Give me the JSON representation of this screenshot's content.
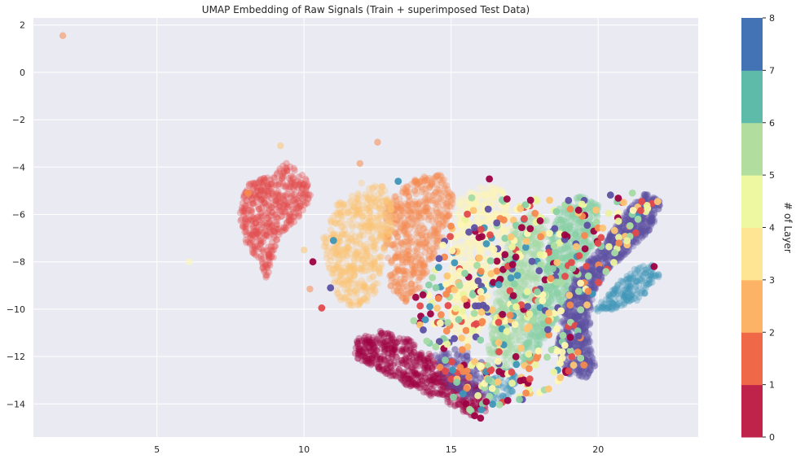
{
  "chart_data": {
    "type": "scatter",
    "title": "UMAP Embedding of Raw Signals (Train + superimposed Test Data)",
    "xlabel": "",
    "ylabel": "",
    "xlim": [
      0.8,
      23.4
    ],
    "ylim": [
      -15.4,
      2.3
    ],
    "xticks": [
      5,
      10,
      15,
      20
    ],
    "yticks": [
      2,
      0,
      -2,
      -4,
      -6,
      -8,
      -10,
      -12,
      -14
    ],
    "grid": true,
    "colorbar": {
      "label": "# of Layer",
      "ticks": [
        0,
        1,
        2,
        3,
        4,
        5,
        6,
        7,
        8
      ],
      "range": [
        0,
        8
      ],
      "colors": [
        "#c0234a",
        "#ef6948",
        "#fdb366",
        "#fee593",
        "#eef8a0",
        "#b1de9f",
        "#5ebaa9",
        "#4373b4"
      ]
    },
    "layer_colors": [
      "#9e0142",
      "#e34a4b",
      "#f6894e",
      "#fdc573",
      "#fef7b0",
      "#ebf39d",
      "#a6dba4",
      "#8ad1a5",
      "#3e96b7",
      "#5d50a3"
    ],
    "train_clusters": [
      {
        "layer": 0,
        "polygon": [
          [
            11.7,
            -11.3
          ],
          [
            12.6,
            -10.9
          ],
          [
            13.6,
            -11.3
          ],
          [
            14.6,
            -12.2
          ],
          [
            15.4,
            -12.9
          ],
          [
            16.1,
            -13.4
          ],
          [
            16.2,
            -14.3
          ],
          [
            15.6,
            -14.5
          ],
          [
            14.7,
            -13.9
          ],
          [
            13.6,
            -13.3
          ],
          [
            12.6,
            -12.6
          ],
          [
            11.7,
            -12.0
          ]
        ]
      },
      {
        "layer": 1,
        "polygon": [
          [
            8.0,
            -4.8
          ],
          [
            9.0,
            -4.2
          ],
          [
            9.4,
            -3.8
          ],
          [
            10.1,
            -4.5
          ],
          [
            10.3,
            -5.2
          ],
          [
            9.8,
            -6.2
          ],
          [
            9.1,
            -7.0
          ],
          [
            8.9,
            -8.2
          ],
          [
            8.7,
            -8.8
          ],
          [
            8.5,
            -8.0
          ],
          [
            8.0,
            -7.2
          ],
          [
            7.8,
            -6.0
          ]
        ]
      },
      {
        "layer": 2,
        "polygon": [
          [
            12.8,
            -5.5
          ],
          [
            13.6,
            -4.6
          ],
          [
            14.6,
            -4.2
          ],
          [
            15.1,
            -5.2
          ],
          [
            14.9,
            -6.6
          ],
          [
            14.4,
            -7.8
          ],
          [
            14.0,
            -9.0
          ],
          [
            13.4,
            -9.8
          ],
          [
            12.9,
            -9.0
          ],
          [
            12.7,
            -7.2
          ]
        ]
      },
      {
        "layer": 3,
        "polygon": [
          [
            11.1,
            -5.6
          ],
          [
            12.0,
            -4.6
          ],
          [
            12.9,
            -4.9
          ],
          [
            13.1,
            -6.4
          ],
          [
            12.7,
            -8.0
          ],
          [
            12.4,
            -9.4
          ],
          [
            11.8,
            -10.0
          ],
          [
            11.2,
            -9.6
          ],
          [
            10.8,
            -8.2
          ],
          [
            10.6,
            -6.9
          ]
        ]
      },
      {
        "layer": 4,
        "polygon": [
          [
            15.3,
            -5.3
          ],
          [
            16.1,
            -4.7
          ],
          [
            16.9,
            -5.0
          ],
          [
            17.1,
            -6.6
          ],
          [
            16.6,
            -8.4
          ],
          [
            16.2,
            -10.5
          ],
          [
            15.6,
            -11.5
          ],
          [
            15.0,
            -10.9
          ],
          [
            14.9,
            -9.0
          ],
          [
            15.0,
            -7.0
          ]
        ]
      },
      {
        "layer": 6,
        "polygon": [
          [
            17.1,
            -6.4
          ],
          [
            17.8,
            -5.8
          ],
          [
            18.3,
            -6.3
          ],
          [
            18.1,
            -8.2
          ],
          [
            17.6,
            -10.5
          ],
          [
            17.2,
            -12.3
          ],
          [
            16.7,
            -12.9
          ],
          [
            16.2,
            -12.2
          ],
          [
            16.4,
            -10.0
          ],
          [
            16.8,
            -8.0
          ]
        ]
      },
      {
        "layer": 7,
        "polygon": [
          [
            18.5,
            -5.9
          ],
          [
            19.4,
            -5.2
          ],
          [
            20.0,
            -5.6
          ],
          [
            19.9,
            -7.2
          ],
          [
            19.3,
            -8.5
          ],
          [
            18.6,
            -10.4
          ],
          [
            17.9,
            -12.0
          ],
          [
            17.4,
            -12.6
          ],
          [
            17.5,
            -11.0
          ],
          [
            18.1,
            -9.0
          ],
          [
            18.3,
            -7.5
          ]
        ]
      },
      {
        "layer": 8,
        "polygon": [
          [
            19.9,
            -10.0
          ],
          [
            20.6,
            -9.0
          ],
          [
            21.3,
            -8.2
          ],
          [
            21.9,
            -8.1
          ],
          [
            22.1,
            -8.6
          ],
          [
            21.4,
            -9.6
          ],
          [
            20.6,
            -10.0
          ],
          [
            20.0,
            -10.2
          ]
        ]
      },
      {
        "layer": 9,
        "polygon": [
          [
            19.2,
            -8.6
          ],
          [
            20.2,
            -7.2
          ],
          [
            21.0,
            -5.8
          ],
          [
            21.6,
            -5.1
          ],
          [
            22.2,
            -5.5
          ],
          [
            21.8,
            -6.6
          ],
          [
            21.0,
            -7.6
          ],
          [
            20.3,
            -8.4
          ],
          [
            19.8,
            -9.4
          ],
          [
            19.7,
            -11.0
          ],
          [
            19.9,
            -12.4
          ],
          [
            19.6,
            -12.9
          ],
          [
            18.9,
            -12.7
          ],
          [
            18.6,
            -11.6
          ],
          [
            18.8,
            -10.0
          ]
        ]
      },
      {
        "layer": 9,
        "polygon": [
          [
            14.4,
            -11.8
          ],
          [
            15.4,
            -11.6
          ],
          [
            16.2,
            -12.4
          ],
          [
            16.2,
            -13.6
          ],
          [
            15.5,
            -13.8
          ],
          [
            14.8,
            -13.2
          ]
        ]
      },
      {
        "layer": 8,
        "polygon": [
          [
            16.2,
            -12.9
          ],
          [
            16.9,
            -12.4
          ],
          [
            17.3,
            -13.0
          ],
          [
            17.0,
            -13.7
          ],
          [
            16.4,
            -13.9
          ]
        ]
      }
    ],
    "outliers": [
      {
        "x": 1.8,
        "y": 1.55,
        "layer": 2
      },
      {
        "x": 6.1,
        "y": -8.0,
        "layer": 4
      },
      {
        "x": 9.2,
        "y": -3.1,
        "layer": 3
      },
      {
        "x": 12.5,
        "y": -2.95,
        "layer": 2
      },
      {
        "x": 11.9,
        "y": -3.85,
        "layer": 2
      },
      {
        "x": 10.2,
        "y": -9.15,
        "layer": 2
      },
      {
        "x": 10.0,
        "y": -7.5,
        "layer": 3
      }
    ],
    "test_points": [
      {
        "x": 11.0,
        "y": -7.1,
        "layer": 8
      },
      {
        "x": 10.9,
        "y": -9.1,
        "layer": 9
      },
      {
        "x": 10.3,
        "y": -8.0,
        "layer": 0
      },
      {
        "x": 8.1,
        "y": -5.1,
        "layer": 2
      },
      {
        "x": 10.6,
        "y": -9.95,
        "layer": 1
      },
      {
        "x": 13.2,
        "y": -4.6,
        "layer": 8
      },
      {
        "x": 13.8,
        "y": -9.5,
        "layer": 0
      },
      {
        "x": 14.3,
        "y": -10.2,
        "layer": 0
      },
      {
        "x": 16.3,
        "y": -4.5,
        "layer": 0
      },
      {
        "x": 15.7,
        "y": -5.3,
        "layer": 6
      },
      {
        "x": 17.2,
        "y": -7.8,
        "layer": 0
      },
      {
        "x": 17.7,
        "y": -5.4,
        "layer": 0
      },
      {
        "x": 21.9,
        "y": -8.2,
        "layer": 0
      },
      {
        "x": 16.0,
        "y": -14.6,
        "layer": 0
      },
      {
        "x": 15.8,
        "y": -14.5,
        "layer": 0
      }
    ],
    "test_region": [
      [
        14.2,
        -8.2
      ],
      [
        15.3,
        -5.8
      ],
      [
        16.8,
        -5.3
      ],
      [
        18.5,
        -5.3
      ],
      [
        20.0,
        -5.0
      ],
      [
        21.5,
        -4.9
      ],
      [
        22.2,
        -5.4
      ],
      [
        21.6,
        -6.6
      ],
      [
        20.8,
        -7.6
      ],
      [
        20.0,
        -8.9
      ],
      [
        19.4,
        -10.6
      ],
      [
        19.6,
        -12.3
      ],
      [
        18.4,
        -13.4
      ],
      [
        16.6,
        -14.4
      ],
      [
        15.6,
        -14.5
      ],
      [
        14.8,
        -13.3
      ],
      [
        14.3,
        -11.6
      ],
      [
        13.7,
        -10.6
      ],
      [
        13.9,
        -9.2
      ]
    ]
  }
}
